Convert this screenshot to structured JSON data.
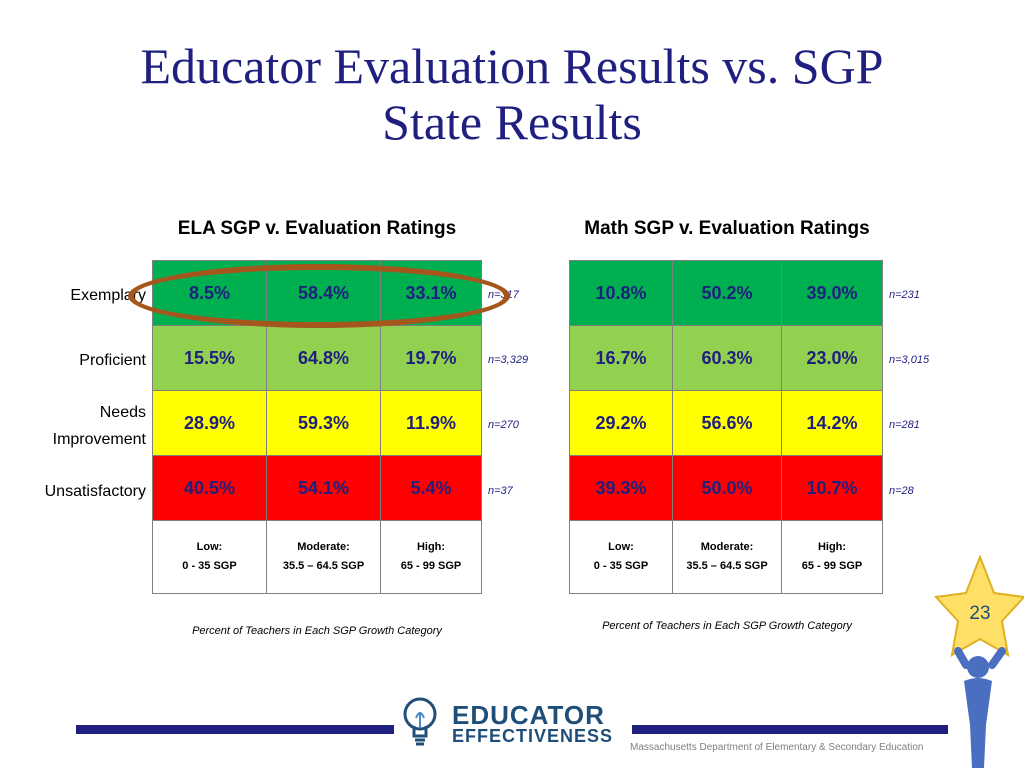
{
  "title_line1": "Educator Evaluation Results vs. SGP",
  "title_line2": "State Results",
  "row_labels": {
    "exemplary": "Exemplary",
    "proficient": "Proficient",
    "needs_line1": "Needs",
    "needs_line2": "Improvement",
    "unsatisfactory": "Unsatisfactory"
  },
  "ela": {
    "heading": "ELA SGP v. Evaluation Ratings",
    "rows": {
      "exemplary": [
        "8.5%",
        "58.4%",
        "33.1%"
      ],
      "proficient": [
        "15.5%",
        "64.8%",
        "19.7%"
      ],
      "needs": [
        "28.9%",
        "59.3%",
        "11.9%"
      ],
      "unsatisfactory": [
        "40.5%",
        "54.1%",
        "5.4%"
      ]
    },
    "n": {
      "exemplary": "n=317",
      "proficient": "n=3,329",
      "needs": "n=270",
      "unsatisfactory": "n=37"
    },
    "caption": "Percent of Teachers in Each SGP Growth Category"
  },
  "math": {
    "heading": "Math SGP v. Evaluation Ratings",
    "rows": {
      "exemplary": [
        "10.8%",
        "50.2%",
        "39.0%"
      ],
      "proficient": [
        "16.7%",
        "60.3%",
        "23.0%"
      ],
      "needs": [
        "29.2%",
        "56.6%",
        "14.2%"
      ],
      "unsatisfactory": [
        "39.3%",
        "50.0%",
        "10.7%"
      ]
    },
    "n": {
      "exemplary": "n=231",
      "proficient": "n=3,015",
      "needs": "n=281",
      "unsatisfactory": "n=28"
    },
    "caption": "Percent of Teachers in Each SGP Growth Category"
  },
  "categories": {
    "low_title": "Low:",
    "low_range": "0 - 35 SGP",
    "moderate_title": "Moderate:",
    "moderate_range": "35.5 – 64.5 SGP",
    "high_title": "High:",
    "high_range": "65 - 99 SGP"
  },
  "logo": {
    "line1": "EDUCATOR",
    "line2": "EFFECTIVENESS"
  },
  "footer": "Massachusetts Department of Elementary & Secondary  Education",
  "page_number": "23",
  "colors": {
    "title": "#1f1f80",
    "exemplary": "#00b050",
    "proficient": "#92d050",
    "needs_improvement": "#ffff00",
    "unsatisfactory": "#ff0000",
    "highlight_ellipse": "#a5561d",
    "star": "#ffe066"
  },
  "icons": [
    "lightbulb-icon",
    "star-person-icon"
  ]
}
